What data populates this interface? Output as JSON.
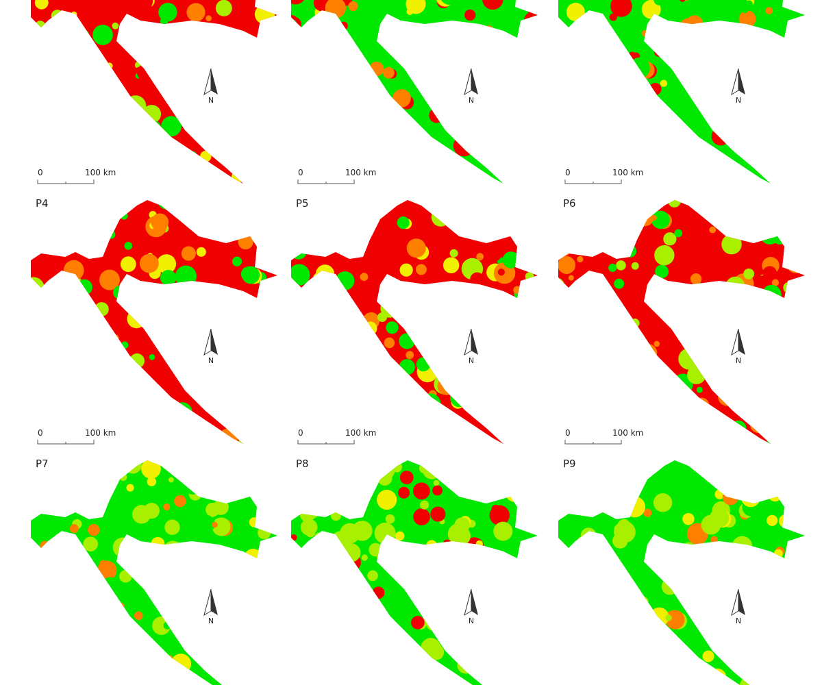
{
  "maps": [
    {
      "north": "N",
      "scale_start": "0",
      "scale_end": "100 km"
    },
    {
      "north": "N",
      "scale_start": "0",
      "scale_end": "100 km"
    },
    {
      "north": "N",
      "scale_start": "0",
      "scale_end": "100 km"
    },
    {
      "label": "P4",
      "north": "N",
      "scale_start": "0",
      "scale_end": "100 km"
    },
    {
      "label": "P5",
      "north": "N",
      "scale_start": "0",
      "scale_end": "100 km"
    },
    {
      "label": "P6",
      "north": "N",
      "scale_start": "0",
      "scale_end": "100 km"
    },
    {
      "label": "P7",
      "north": "N"
    },
    {
      "label": "P8",
      "north": "N"
    },
    {
      "label": "P9",
      "north": "N"
    }
  ]
}
